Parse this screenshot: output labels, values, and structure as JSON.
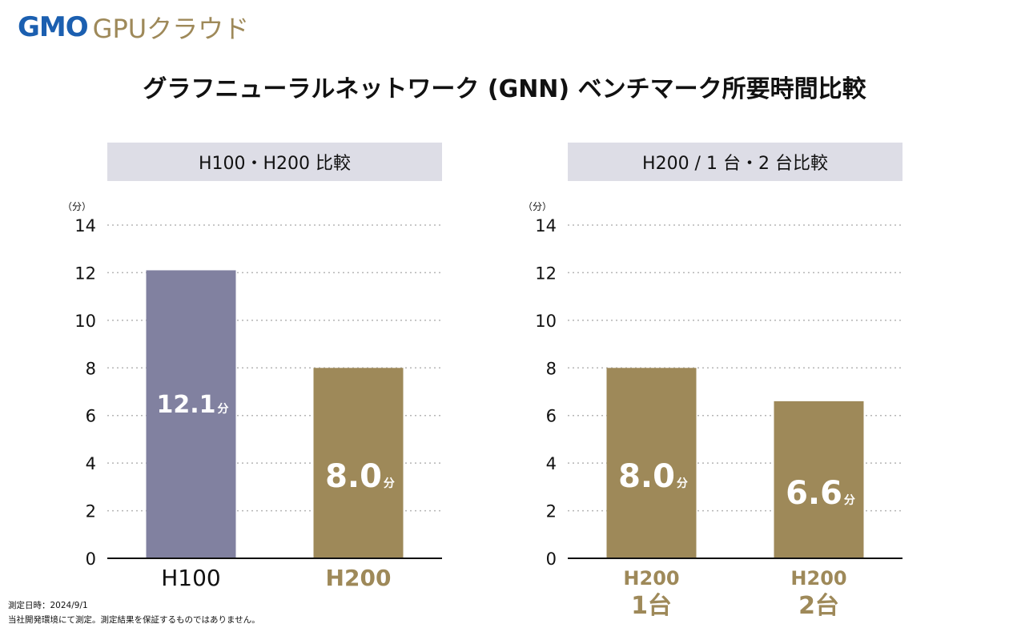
{
  "brand": {
    "logo_primary": "GMO",
    "logo_secondary": "GPUクラウド"
  },
  "title": "グラフニューラルネットワーク (GNN) ベンチマーク所要時間比較",
  "colors": {
    "purple": "#8181a0",
    "gold": "#9e8959",
    "header_bg": "#dddde6",
    "brand_blue": "#1b5fb0"
  },
  "footnote": {
    "line1": "測定日時：2024/9/1",
    "line2": "当社開発環境にて測定。測定結果を保証するものではありません。"
  },
  "chart_data": [
    {
      "type": "bar",
      "title": "H100・H200 比較",
      "ylabel": "（分）",
      "ylim": [
        0,
        14
      ],
      "yticks": [
        0,
        2,
        4,
        6,
        8,
        10,
        12,
        14
      ],
      "grid": true,
      "unit": "分",
      "categories": [
        {
          "line1": "H100",
          "line2": ""
        },
        {
          "line1": "H200",
          "line2": ""
        }
      ],
      "values": [
        12.1,
        8.0
      ],
      "value_labels": [
        "12.1",
        "8.0"
      ],
      "bar_colors": [
        "#8181a0",
        "#9e8959"
      ],
      "category_colors": [
        "#111111",
        "#9e8959"
      ]
    },
    {
      "type": "bar",
      "title": "H200 / 1 台・2 台比較",
      "ylabel": "（分）",
      "ylim": [
        0,
        14
      ],
      "yticks": [
        0,
        2,
        4,
        6,
        8,
        10,
        12,
        14
      ],
      "grid": true,
      "unit": "分",
      "categories": [
        {
          "line1": "H200",
          "line2": "1台"
        },
        {
          "line1": "H200",
          "line2": "2台"
        }
      ],
      "values": [
        8.0,
        6.6
      ],
      "value_labels": [
        "8.0",
        "6.6"
      ],
      "bar_colors": [
        "#9e8959",
        "#9e8959"
      ],
      "category_colors": [
        "#9e8959",
        "#9e8959"
      ]
    }
  ]
}
